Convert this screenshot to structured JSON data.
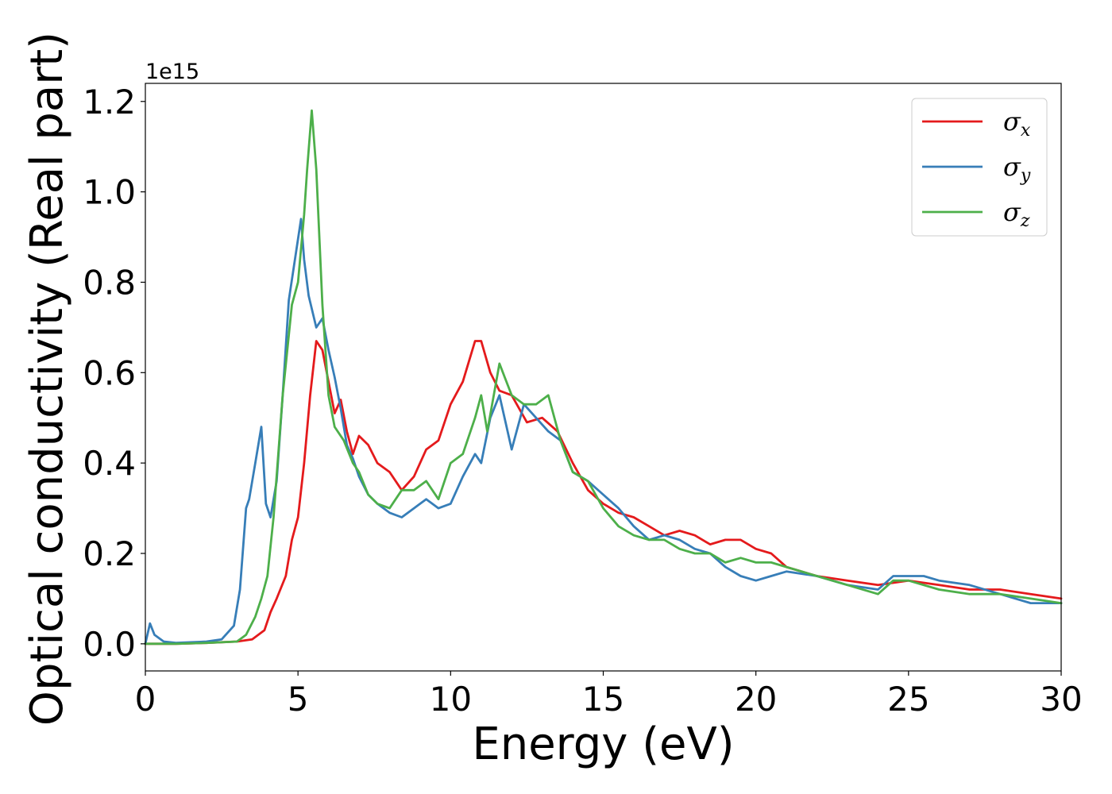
{
  "chart_data": {
    "type": "line",
    "xlabel": "Energy (eV)",
    "ylabel": "Optical conductivity (Real part)",
    "y_offset_label": "1e15",
    "y_multiplier": 1000000000000000.0,
    "xlim": [
      0,
      30
    ],
    "ylim": [
      -0.06,
      1.24
    ],
    "x_ticks": [
      0,
      5,
      10,
      15,
      20,
      25,
      30
    ],
    "x_tick_labels": [
      "0",
      "5",
      "10",
      "15",
      "20",
      "25",
      "30"
    ],
    "y_ticks": [
      0.0,
      0.2,
      0.4,
      0.6,
      0.8,
      1.0,
      1.2
    ],
    "y_tick_labels": [
      "0.0",
      "0.2",
      "0.4",
      "0.6",
      "0.8",
      "1.0",
      "1.2"
    ],
    "grid": false,
    "legend_position": "top-right",
    "series": [
      {
        "name": "σx",
        "symbol": "σ",
        "subscript": "x",
        "color": "#e41a1c",
        "x": [
          0,
          1,
          2,
          3,
          3.5,
          3.9,
          4.1,
          4.3,
          4.6,
          4.8,
          5.0,
          5.2,
          5.4,
          5.6,
          5.8,
          6.0,
          6.2,
          6.4,
          6.6,
          6.8,
          7.0,
          7.3,
          7.6,
          8.0,
          8.4,
          8.8,
          9.2,
          9.6,
          10.0,
          10.4,
          10.8,
          11.0,
          11.3,
          11.6,
          12.0,
          12.5,
          13.0,
          13.5,
          14.0,
          14.5,
          15.0,
          15.5,
          16.0,
          16.5,
          17.0,
          17.5,
          18.0,
          18.5,
          19.0,
          19.5,
          20.0,
          20.5,
          21.0,
          22.0,
          23.0,
          24.0,
          25.0,
          26.0,
          27.0,
          28.0,
          29.0,
          30.0
        ],
        "y": [
          0.0,
          0.0,
          0.002,
          0.005,
          0.01,
          0.03,
          0.07,
          0.1,
          0.15,
          0.23,
          0.28,
          0.4,
          0.55,
          0.67,
          0.65,
          0.58,
          0.51,
          0.54,
          0.47,
          0.42,
          0.46,
          0.44,
          0.4,
          0.38,
          0.34,
          0.37,
          0.43,
          0.45,
          0.53,
          0.58,
          0.67,
          0.67,
          0.6,
          0.56,
          0.55,
          0.49,
          0.5,
          0.47,
          0.4,
          0.34,
          0.31,
          0.29,
          0.28,
          0.26,
          0.24,
          0.25,
          0.24,
          0.22,
          0.23,
          0.23,
          0.21,
          0.2,
          0.17,
          0.15,
          0.14,
          0.13,
          0.14,
          0.13,
          0.12,
          0.12,
          0.11,
          0.1
        ]
      },
      {
        "name": "σy",
        "symbol": "σ",
        "subscript": "y",
        "color": "#377eb8",
        "x": [
          0,
          0.15,
          0.3,
          0.6,
          1.0,
          2.0,
          2.5,
          2.9,
          3.1,
          3.3,
          3.4,
          3.6,
          3.8,
          3.95,
          4.1,
          4.3,
          4.5,
          4.7,
          4.9,
          5.1,
          5.2,
          5.35,
          5.6,
          5.8,
          6.0,
          6.2,
          6.4,
          6.6,
          6.8,
          7.0,
          7.3,
          7.6,
          8.0,
          8.4,
          8.8,
          9.2,
          9.6,
          10.0,
          10.4,
          10.8,
          11.0,
          11.3,
          11.6,
          12.0,
          12.4,
          12.8,
          13.2,
          13.6,
          14.0,
          14.5,
          15.0,
          15.5,
          16.0,
          16.5,
          17.0,
          17.5,
          18.0,
          18.5,
          19.0,
          19.5,
          20.0,
          20.5,
          21.0,
          22.0,
          23.0,
          24.0,
          24.5,
          25.0,
          25.5,
          26.0,
          27.0,
          28.0,
          29.0,
          30.0
        ],
        "y": [
          0.0,
          0.045,
          0.02,
          0.005,
          0.002,
          0.005,
          0.01,
          0.04,
          0.12,
          0.3,
          0.32,
          0.4,
          0.48,
          0.31,
          0.28,
          0.36,
          0.55,
          0.76,
          0.85,
          0.94,
          0.85,
          0.77,
          0.7,
          0.72,
          0.65,
          0.59,
          0.52,
          0.44,
          0.41,
          0.37,
          0.33,
          0.31,
          0.29,
          0.28,
          0.3,
          0.32,
          0.3,
          0.31,
          0.37,
          0.42,
          0.4,
          0.5,
          0.55,
          0.43,
          0.53,
          0.5,
          0.47,
          0.45,
          0.38,
          0.36,
          0.33,
          0.3,
          0.26,
          0.23,
          0.24,
          0.23,
          0.21,
          0.2,
          0.17,
          0.15,
          0.14,
          0.15,
          0.16,
          0.15,
          0.13,
          0.12,
          0.15,
          0.15,
          0.15,
          0.14,
          0.13,
          0.11,
          0.09,
          0.09
        ]
      },
      {
        "name": "σz",
        "symbol": "σ",
        "subscript": "z",
        "color": "#4daf4a",
        "x": [
          0,
          1,
          2,
          3,
          3.3,
          3.6,
          3.8,
          4.0,
          4.2,
          4.5,
          4.8,
          5.0,
          5.2,
          5.3,
          5.45,
          5.6,
          5.8,
          6.0,
          6.2,
          6.5,
          6.8,
          7.0,
          7.3,
          7.6,
          8.0,
          8.4,
          8.8,
          9.2,
          9.6,
          10.0,
          10.4,
          10.8,
          11.0,
          11.2,
          11.6,
          12.0,
          12.4,
          12.8,
          13.2,
          13.6,
          14.0,
          14.5,
          15.0,
          15.5,
          16.0,
          16.5,
          17.0,
          17.5,
          18.0,
          18.5,
          19.0,
          19.5,
          20.0,
          20.5,
          21.0,
          22.0,
          23.0,
          24.0,
          24.5,
          25.0,
          26.0,
          27.0,
          28.0,
          29.0,
          30.0
        ],
        "y": [
          0.0,
          0.0,
          0.002,
          0.005,
          0.02,
          0.06,
          0.1,
          0.15,
          0.28,
          0.55,
          0.75,
          0.8,
          0.95,
          1.05,
          1.18,
          1.05,
          0.75,
          0.55,
          0.48,
          0.45,
          0.4,
          0.38,
          0.33,
          0.31,
          0.3,
          0.34,
          0.34,
          0.36,
          0.32,
          0.4,
          0.42,
          0.5,
          0.55,
          0.47,
          0.62,
          0.55,
          0.53,
          0.53,
          0.55,
          0.45,
          0.38,
          0.36,
          0.3,
          0.26,
          0.24,
          0.23,
          0.23,
          0.21,
          0.2,
          0.2,
          0.18,
          0.19,
          0.18,
          0.18,
          0.17,
          0.15,
          0.13,
          0.11,
          0.14,
          0.14,
          0.12,
          0.11,
          0.11,
          0.1,
          0.09
        ]
      }
    ]
  }
}
